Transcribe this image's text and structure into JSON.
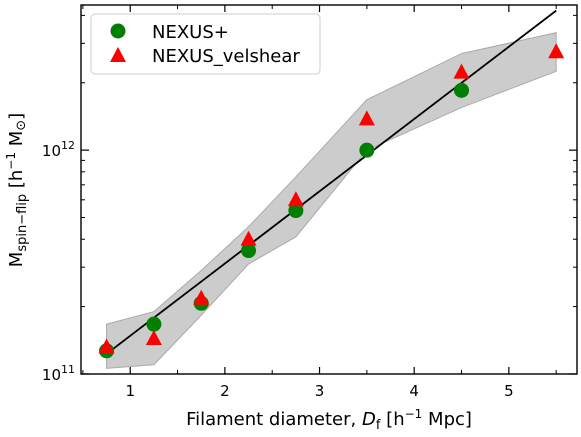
{
  "chart_data": {
    "type": "scatter",
    "xlabel_main": "Filament diameter,",
    "xlabel_sym": "D",
    "xlabel_sub": "f",
    "xlabel_unit_open": " [h",
    "xlabel_unit_exp": "−1",
    "xlabel_unit_close": " Mpc]",
    "ylabel_main": "M",
    "ylabel_sub": "spin−flip",
    "ylabel_unit_open": " [h",
    "ylabel_unit_exp": "−1",
    "ylabel_unit_mid": " M",
    "ylabel_unit_sun": "⊙",
    "ylabel_unit_close": "]",
    "xlim": [
      0.48,
      5.72
    ],
    "ylim": [
      100000000000.0,
      4450000000000.0
    ],
    "yscale": "log",
    "x_ticks": [
      1,
      2,
      3,
      4,
      5
    ],
    "x_tick_labels": [
      "1",
      "2",
      "3",
      "4",
      "5"
    ],
    "y_major_ticks": [
      100000000000.0,
      1000000000000.0
    ],
    "y_major_labels": [
      {
        "base": "10",
        "exp": "11"
      },
      {
        "base": "10",
        "exp": "12"
      }
    ],
    "legend": {
      "position": "top-left",
      "entries": [
        {
          "label": "NEXUS+",
          "marker": "circle",
          "color": "#008000"
        },
        {
          "label": "NEXUS_velshear",
          "marker": "triangle",
          "color": "#ff0000"
        }
      ]
    },
    "series": [
      {
        "name": "NEXUS+",
        "marker": "circle",
        "color": "#008000",
        "x": [
          0.75,
          1.25,
          1.75,
          2.25,
          2.75,
          3.5,
          4.5
        ],
        "y": [
          127000000000.0,
          167000000000.0,
          207000000000.0,
          356000000000.0,
          537000000000.0,
          1000000000000.0,
          1850000000000.0
        ]
      },
      {
        "name": "NEXUS_velshear",
        "marker": "triangle",
        "color": "#ff0000",
        "x": [
          0.75,
          1.25,
          1.75,
          2.25,
          2.75,
          3.5,
          4.5,
          5.5
        ],
        "y": [
          132000000000.0,
          144000000000.0,
          218000000000.0,
          400000000000.0,
          600000000000.0,
          1380000000000.0,
          2230000000000.0,
          2750000000000.0
        ]
      }
    ],
    "fit_line": {
      "color": "#000000",
      "x": [
        0.75,
        5.5
      ],
      "y": [
        123000000000.0,
        4200000000000.0
      ]
    },
    "band": {
      "color": "#cccccc",
      "x": [
        0.75,
        1.25,
        1.75,
        2.25,
        2.75,
        3.5,
        4.5,
        5.5
      ],
      "upper": [
        167000000000.0,
        190000000000.0,
        290000000000.0,
        455000000000.0,
        760000000000.0,
        1680000000000.0,
        2700000000000.0,
        3350000000000.0
      ],
      "lower": [
        106000000000.0,
        110000000000.0,
        183000000000.0,
        310000000000.0,
        410000000000.0,
        1000000000000.0,
        1550000000000.0,
        2250000000000.0
      ]
    }
  }
}
